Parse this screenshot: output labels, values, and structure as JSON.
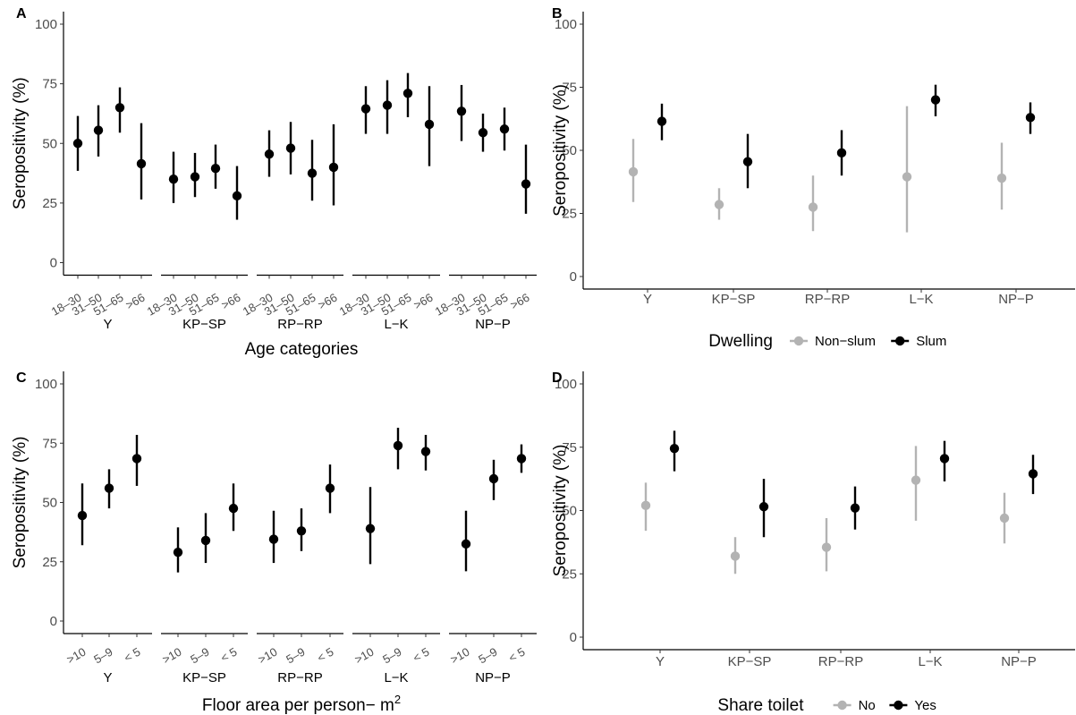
{
  "chart_data": [
    {
      "panel": "A",
      "type": "scatter",
      "style": "pointrange",
      "ylabel": "Seropositivity (%)",
      "xlabel": "Age categories",
      "ylim": [
        0,
        100
      ],
      "yticks": [
        0,
        25,
        50,
        75,
        100
      ],
      "groups": [
        "Y",
        "KP−SP",
        "RP−RP",
        "L−K",
        "NP−P"
      ],
      "subcategories": [
        "18–30",
        "31–50",
        "51–65",
        ">66"
      ],
      "color": "#000000",
      "points": [
        [
          [
            50,
            38.5,
            61.5
          ],
          [
            55.5,
            44.5,
            66
          ],
          [
            65,
            54.5,
            73.5
          ],
          [
            41.5,
            26.5,
            58.5
          ]
        ],
        [
          [
            35,
            25,
            46.5
          ],
          [
            36,
            27.5,
            46
          ],
          [
            39.5,
            31,
            49.5
          ],
          [
            28,
            18,
            40.5
          ]
        ],
        [
          [
            45.5,
            36,
            55.5
          ],
          [
            48,
            37,
            59
          ],
          [
            37.5,
            26,
            51.5
          ],
          [
            40,
            24,
            58
          ]
        ],
        [
          [
            64.5,
            54,
            74
          ],
          [
            66,
            54,
            76.5
          ],
          [
            71,
            61,
            79.5
          ],
          [
            58,
            40.5,
            74
          ]
        ],
        [
          [
            63.5,
            51,
            74.5
          ],
          [
            54.5,
            46.5,
            62.5
          ],
          [
            56,
            47,
            65
          ],
          [
            33,
            20.5,
            49.5
          ]
        ]
      ]
    },
    {
      "panel": "B",
      "type": "scatter",
      "style": "pointrange",
      "ylabel": "Seropositivity (%)",
      "ylim": [
        0,
        100
      ],
      "yticks": [
        0,
        25,
        50,
        75,
        100
      ],
      "categories": [
        "Y",
        "KP−SP",
        "RP−RP",
        "L−K",
        "NP−P"
      ],
      "legend": {
        "title": "Dwelling",
        "position": "bottom"
      },
      "series": [
        {
          "name": "Non−slum",
          "color": "#b3b3b3",
          "values": [
            [
              41.5,
              29.5,
              54.5
            ],
            [
              28.5,
              22.5,
              35
            ],
            [
              27.5,
              18,
              40
            ],
            [
              39.5,
              17.5,
              67.5
            ],
            [
              39,
              26.5,
              53
            ]
          ]
        },
        {
          "name": "Slum",
          "color": "#000000",
          "values": [
            [
              61.5,
              54,
              68.5
            ],
            [
              45.5,
              35,
              56.5
            ],
            [
              49,
              40,
              58
            ],
            [
              70,
              63.5,
              76
            ],
            [
              63,
              56.5,
              69
            ]
          ]
        }
      ]
    },
    {
      "panel": "C",
      "type": "scatter",
      "style": "pointrange",
      "ylabel": "Seropositivity (%)",
      "xlabel_main": "Floor area per person− m",
      "xlabel_sup": "2",
      "ylim": [
        0,
        100
      ],
      "yticks": [
        0,
        25,
        50,
        75,
        100
      ],
      "groups": [
        "Y",
        "KP−SP",
        "RP−RP",
        "L−K",
        "NP−P"
      ],
      "subcategories": [
        ">10",
        "5–9",
        "< 5"
      ],
      "color": "#000000",
      "points": [
        [
          [
            44.5,
            32,
            58
          ],
          [
            56,
            47.5,
            64
          ],
          [
            68.5,
            57,
            78.5
          ]
        ],
        [
          [
            29,
            20.5,
            39.5
          ],
          [
            34,
            24.5,
            45.5
          ],
          [
            47.5,
            38,
            58
          ]
        ],
        [
          [
            34.5,
            24.5,
            46.5
          ],
          [
            38,
            29.5,
            47.5
          ],
          [
            56,
            45.5,
            66
          ]
        ],
        [
          [
            39,
            24,
            56.5
          ],
          [
            74,
            64,
            81.5
          ],
          [
            71.5,
            63.5,
            78.5
          ]
        ],
        [
          [
            32.5,
            21,
            46.5
          ],
          [
            60,
            51,
            68
          ],
          [
            68.5,
            62.5,
            74.5
          ]
        ]
      ]
    },
    {
      "panel": "D",
      "type": "scatter",
      "style": "pointrange",
      "ylabel": "Seropositivity (%)",
      "ylim": [
        0,
        100
      ],
      "yticks": [
        0,
        25,
        50,
        75,
        100
      ],
      "categories": [
        "Y",
        "KP−SP",
        "RP−RP",
        "L−K",
        "NP−P"
      ],
      "legend": {
        "title": "Share toilet",
        "position": "bottom"
      },
      "series": [
        {
          "name": "No",
          "color": "#b3b3b3",
          "values": [
            [
              52,
              42,
              61
            ],
            [
              32,
              25,
              39.5
            ],
            [
              35.5,
              26,
              47
            ],
            [
              62,
              46,
              75.5
            ],
            [
              47,
              37,
              57
            ]
          ]
        },
        {
          "name": "Yes",
          "color": "#000000",
          "values": [
            [
              74.5,
              65.5,
              81.5
            ],
            [
              51.5,
              39.5,
              62.5
            ],
            [
              51,
              42.5,
              59.5
            ],
            [
              70.5,
              61.5,
              77.5
            ],
            [
              64.5,
              56.5,
              72
            ]
          ]
        }
      ]
    }
  ]
}
